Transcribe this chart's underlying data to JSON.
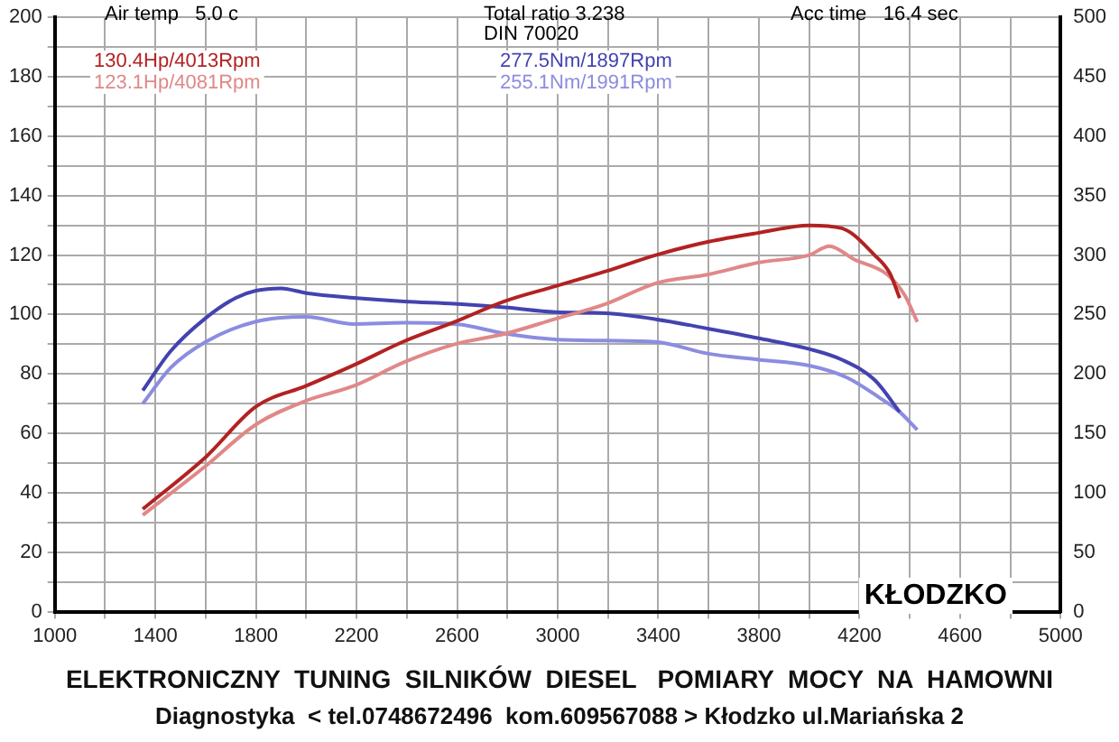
{
  "chart_data": {
    "type": "line",
    "xlim": [
      1000,
      5000
    ],
    "xticks": [
      1000,
      {
        "value": 1200,
        "label": null
      },
      1400,
      {
        "value": 1600,
        "label": null
      },
      1800,
      {
        "value": 2000,
        "label": null
      },
      2200,
      {
        "value": 2400,
        "label": null
      },
      2600,
      {
        "value": 2800,
        "label": null
      },
      3000,
      {
        "value": 3200,
        "label": null
      },
      3400,
      {
        "value": 3600,
        "label": null
      },
      3800,
      {
        "value": 4000,
        "label": null
      },
      4200,
      {
        "value": 4400,
        "label": null
      },
      4600,
      {
        "value": 4800,
        "label": null
      },
      5000
    ],
    "ylim": [
      0,
      200
    ],
    "yticks": [
      0,
      {
        "value": 10,
        "label": null
      },
      20,
      {
        "value": 30,
        "label": null
      },
      40,
      {
        "value": 50,
        "label": null
      },
      60,
      {
        "value": 70,
        "label": null
      },
      80,
      {
        "value": 90,
        "label": null
      },
      100,
      {
        "value": 110,
        "label": null
      },
      120,
      {
        "value": 130,
        "label": null
      },
      140,
      {
        "value": 150,
        "label": null
      },
      160,
      {
        "value": 170,
        "label": null
      },
      180,
      {
        "value": 190,
        "label": null
      },
      200
    ],
    "y2lim": [
      0,
      500
    ],
    "y2ticks": [
      0,
      50,
      100,
      150,
      200,
      250,
      300,
      350,
      400,
      450,
      500
    ],
    "grid": true,
    "marker": "none",
    "line_style": "solid",
    "series": [
      {
        "name": "130.4Hp/4013Rpm",
        "color": "#b22222",
        "x": [
          1350,
          1600,
          1800,
          2000,
          2190,
          2390,
          2590,
          2790,
          2990,
          3190,
          3390,
          3600,
          3800,
          4000,
          4130,
          4260,
          4320,
          4360
        ],
        "values": [
          34.5,
          52,
          69,
          76,
          83,
          91,
          97.5,
          104.5,
          109.5,
          114.5,
          120,
          124.5,
          127.5,
          130,
          129,
          120,
          114,
          105.5
        ]
      },
      {
        "name": "123.1Hp/4081Rpm",
        "color": "#e08888",
        "x": [
          1350,
          1600,
          1800,
          2000,
          2190,
          2390,
          2590,
          2790,
          2990,
          3190,
          3390,
          3600,
          3800,
          4000,
          4080,
          4180,
          4310,
          4380,
          4430
        ],
        "values": [
          32.5,
          49,
          63,
          71,
          76,
          84,
          90,
          93.5,
          98.5,
          103.5,
          110.5,
          113.5,
          117.5,
          120,
          123,
          118.5,
          113.5,
          106.5,
          97.5
        ]
      },
      {
        "name": "277.5Nm/1897Rpm",
        "color": "#4343b0",
        "axis": "y2",
        "x": [
          1350,
          1460,
          1600,
          1720,
          1800,
          1900,
          2000,
          2190,
          2390,
          2590,
          2790,
          2990,
          3190,
          3390,
          3600,
          3800,
          4000,
          4130,
          4260,
          4360
        ],
        "values": [
          186,
          219,
          247,
          264,
          270,
          272,
          268,
          264,
          261,
          259,
          256,
          252,
          251,
          246,
          238,
          230,
          221,
          212,
          195,
          168
        ]
      },
      {
        "name": "255.1Nm/1991Rpm",
        "color": "#8c8ce0",
        "axis": "y2",
        "x": [
          1350,
          1460,
          1600,
          1800,
          2000,
          2190,
          2390,
          2590,
          2790,
          2990,
          3190,
          3390,
          3600,
          3800,
          4000,
          4150,
          4280,
          4360,
          4430
        ],
        "values": [
          175,
          205,
          227,
          244,
          248,
          242,
          243,
          242,
          234,
          229,
          228,
          227,
          217,
          212,
          207,
          197,
          180,
          168,
          153
        ]
      }
    ],
    "annotations": [
      "Air temp   5.0 c",
      "Total ratio 3.238",
      "DIN 70020",
      "Acc time   16.4 sec",
      "KŁODZKO",
      "ELEKTRONICZNY  TUNING  SILNIKÓW  DIESEL   POMIARY  MOCY  NA  HAMOWNI",
      "Diagnostyka  < tel.0748672496  kom.609567088 > Kłodzko ul.Mariańska 2"
    ]
  }
}
